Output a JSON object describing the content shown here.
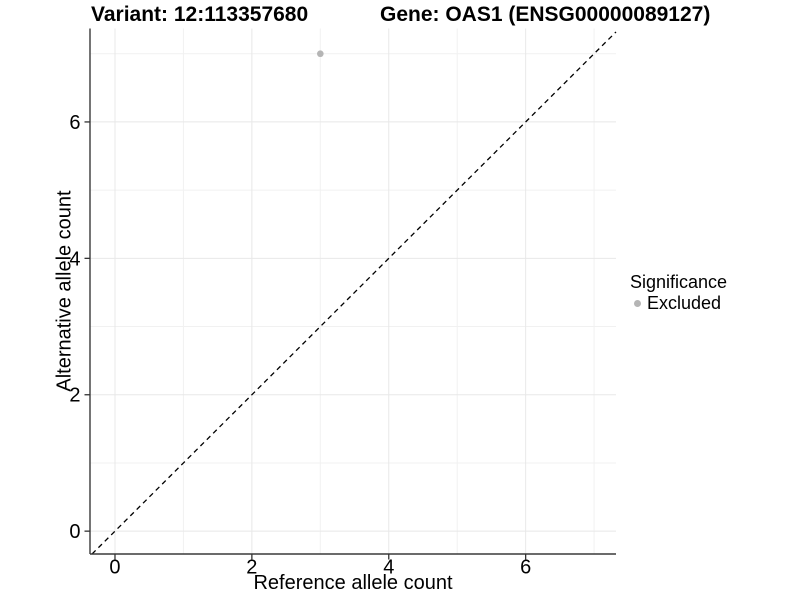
{
  "header": {
    "variant_title": "Variant: 12:113357680",
    "gene_title": "Gene: OAS1 (ENSG00000089127)"
  },
  "chart_data": {
    "type": "scatter",
    "title_left": "Variant: 12:113357680",
    "title_right": "Gene: OAS1 (ENSG00000089127)",
    "xlabel": "Reference allele count",
    "ylabel": "Alternative allele count",
    "xlim": [
      -0.365,
      7.32
    ],
    "ylim": [
      -0.335,
      7.37
    ],
    "x_major_ticks": [
      0,
      2,
      4,
      6
    ],
    "x_minor_ticks": [
      1,
      3,
      5,
      7
    ],
    "y_major_ticks": [
      0,
      2,
      4,
      6
    ],
    "y_minor_ticks": [
      1,
      3,
      5,
      7
    ],
    "grid": true,
    "series": [
      {
        "name": "Excluded",
        "points": [
          {
            "x": 3,
            "y": 7
          }
        ],
        "color": "#b5b5b5"
      }
    ],
    "reference_line": {
      "type": "identity-y-equals-x",
      "style": "dashed",
      "color": "#000000"
    },
    "legend": {
      "title": "Significance",
      "position": "right",
      "entries": [
        {
          "label": "Excluded",
          "color": "#b5b5b5",
          "marker": "circle"
        }
      ]
    }
  },
  "colors": {
    "background": "#ffffff",
    "axis_line": "#3a3a3a",
    "grid_major": "#e8e8e8",
    "grid_minor": "#f1f1f1",
    "tick_mark": "#333333",
    "text": "#000000",
    "point": "#b5b5b5",
    "reference_line": "#000000"
  }
}
